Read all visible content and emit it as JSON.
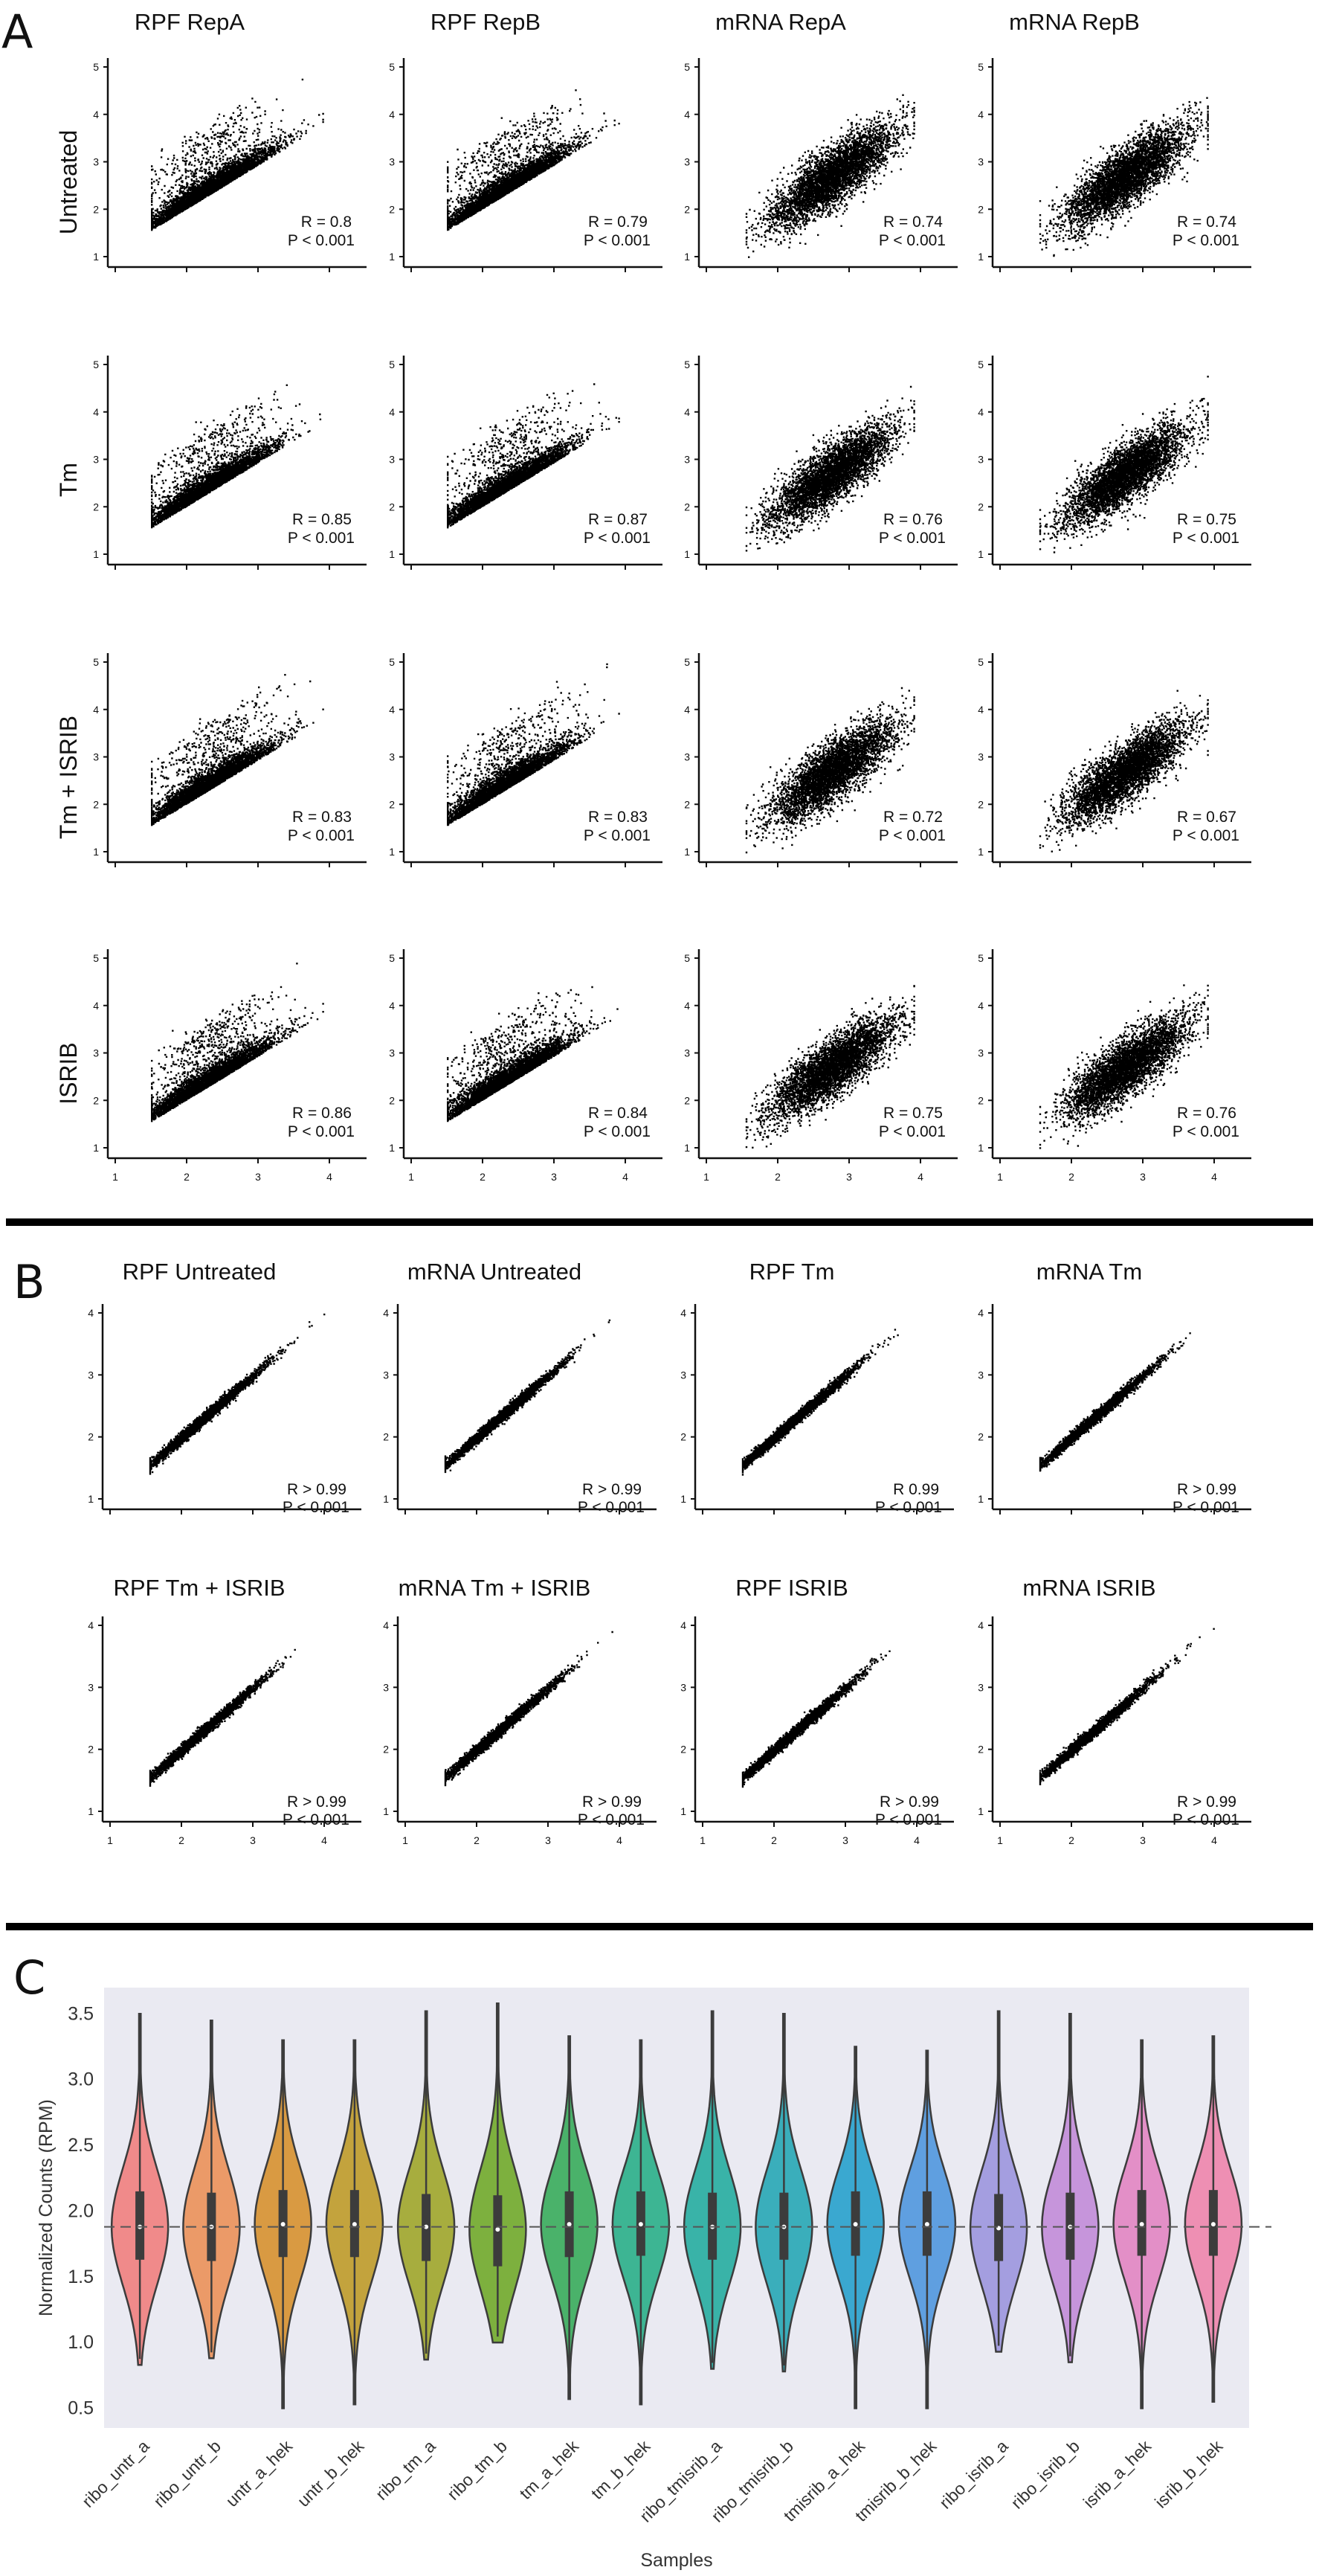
{
  "panels": {
    "A": "A",
    "B": "B",
    "C": "C"
  },
  "chart_data": [
    {
      "type": "scatter",
      "panel": "A",
      "columns": [
        "RPF RepA",
        "RPF RepB",
        "mRNA RepA",
        "mRNA RepB"
      ],
      "rows": [
        "Untreated",
        "Tm",
        "Tm + ISRIB",
        "ISRIB"
      ],
      "xlim": [
        1,
        4
      ],
      "ylim": [
        1,
        5
      ],
      "xticks": [
        1,
        2,
        3,
        4
      ],
      "yticks": [
        1,
        2,
        3,
        4,
        5
      ],
      "stats": [
        [
          {
            "r": "R = 0.8",
            "p": "P < 0.001"
          },
          {
            "r": "R = 0.79",
            "p": "P < 0.001"
          },
          {
            "r": "R = 0.74",
            "p": "P < 0.001"
          },
          {
            "r": "R = 0.74",
            "p": "P < 0.001"
          }
        ],
        [
          {
            "r": "R = 0.85",
            "p": "P < 0.001"
          },
          {
            "r": "R = 0.87",
            "p": "P < 0.001"
          },
          {
            "r": "R = 0.76",
            "p": "P < 0.001"
          },
          {
            "r": "R = 0.75",
            "p": "P < 0.001"
          }
        ],
        [
          {
            "r": "R = 0.83",
            "p": "P < 0.001"
          },
          {
            "r": "R = 0.83",
            "p": "P < 0.001"
          },
          {
            "r": "R = 0.72",
            "p": "P < 0.001"
          },
          {
            "r": "R = 0.67",
            "p": "P < 0.001"
          }
        ],
        [
          {
            "r": "R = 0.86",
            "p": "P < 0.001"
          },
          {
            "r": "R = 0.84",
            "p": "P < 0.001"
          },
          {
            "r": "R = 0.75",
            "p": "P < 0.001"
          },
          {
            "r": "R = 0.76",
            "p": "P < 0.001"
          }
        ]
      ]
    },
    {
      "type": "scatter",
      "panel": "B",
      "xlim": [
        1,
        4
      ],
      "ylim": [
        1,
        4
      ],
      "xticks": [
        1,
        2,
        3,
        4
      ],
      "yticks": [
        1,
        2,
        3,
        4
      ],
      "plots": [
        {
          "title": "RPF Untreated",
          "r": "R > 0.99",
          "p": "P < 0.001"
        },
        {
          "title": "mRNA Untreated",
          "r": "R > 0.99",
          "p": "P < 0.001"
        },
        {
          "title": "RPF Tm",
          "r": "R 0.99",
          "p": "P < 0.001"
        },
        {
          "title": "mRNA Tm",
          "r": "R > 0.99",
          "p": "P < 0.001"
        },
        {
          "title": "RPF Tm + ISRIB",
          "r": "R > 0.99",
          "p": "P < 0.001"
        },
        {
          "title": "mRNA Tm + ISRIB",
          "r": "R > 0.99",
          "p": "P < 0.001"
        },
        {
          "title": "RPF ISRIB",
          "r": "R > 0.99",
          "p": "P < 0.001"
        },
        {
          "title": "mRNA ISRIB",
          "r": "R > 0.99",
          "p": "P < 0.001"
        }
      ]
    },
    {
      "type": "violin",
      "panel": "C",
      "xlabel": "Samples",
      "ylabel": "Normalized Counts (RPM)",
      "ylim": [
        0.35,
        3.7
      ],
      "yticks": [
        "0.5",
        "1.0",
        "1.5",
        "2.0",
        "2.5",
        "3.0",
        "3.5"
      ],
      "reference_line": 1.88,
      "background": "#eaeaf2",
      "samples": [
        {
          "name": "ribo_untr_a",
          "color": "#f08a8a",
          "min": 0.83,
          "q1": 1.63,
          "median": 1.88,
          "q3": 2.15,
          "max": 3.5
        },
        {
          "name": "ribo_untr_b",
          "color": "#eb9a68",
          "min": 0.88,
          "q1": 1.62,
          "median": 1.88,
          "q3": 2.14,
          "max": 3.45
        },
        {
          "name": "untr_a_hek",
          "color": "#d99a42",
          "min": 0.5,
          "q1": 1.65,
          "median": 1.9,
          "q3": 2.16,
          "max": 3.3
        },
        {
          "name": "untr_b_hek",
          "color": "#c3a33d",
          "min": 0.53,
          "q1": 1.65,
          "median": 1.9,
          "q3": 2.16,
          "max": 3.3
        },
        {
          "name": "ribo_tm_a",
          "color": "#a7ad3e",
          "min": 0.87,
          "q1": 1.62,
          "median": 1.88,
          "q3": 2.13,
          "max": 3.52
        },
        {
          "name": "ribo_tm_b",
          "color": "#7db03e",
          "min": 1.0,
          "q1": 1.58,
          "median": 1.86,
          "q3": 2.12,
          "max": 3.58
        },
        {
          "name": "tm_a_hek",
          "color": "#4ab26a",
          "min": 0.57,
          "q1": 1.65,
          "median": 1.9,
          "q3": 2.15,
          "max": 3.33
        },
        {
          "name": "tm_b_hek",
          "color": "#3db593",
          "min": 0.53,
          "q1": 1.66,
          "median": 1.9,
          "q3": 2.15,
          "max": 3.3
        },
        {
          "name": "ribo_tmisrib_a",
          "color": "#39b3a8",
          "min": 0.8,
          "q1": 1.63,
          "median": 1.88,
          "q3": 2.14,
          "max": 3.52
        },
        {
          "name": "ribo_tmisrib_b",
          "color": "#3aaebb",
          "min": 0.78,
          "q1": 1.63,
          "median": 1.88,
          "q3": 2.14,
          "max": 3.5
        },
        {
          "name": "tmisrib_a_hek",
          "color": "#3aa8d0",
          "min": 0.5,
          "q1": 1.66,
          "median": 1.9,
          "q3": 2.15,
          "max": 3.25
        },
        {
          "name": "tmisrib_b_hek",
          "color": "#5f9fe0",
          "min": 0.5,
          "q1": 1.66,
          "median": 1.9,
          "q3": 2.15,
          "max": 3.22
        },
        {
          "name": "ribo_isrib_a",
          "color": "#a49ee0",
          "min": 0.93,
          "q1": 1.62,
          "median": 1.87,
          "q3": 2.13,
          "max": 3.52
        },
        {
          "name": "ribo_isrib_b",
          "color": "#c695db",
          "min": 0.85,
          "q1": 1.63,
          "median": 1.88,
          "q3": 2.14,
          "max": 3.5
        },
        {
          "name": "isrib_a_hek",
          "color": "#e38fc7",
          "min": 0.5,
          "q1": 1.66,
          "median": 1.9,
          "q3": 2.16,
          "max": 3.3
        },
        {
          "name": "isrib_b_hek",
          "color": "#ee8fb3",
          "min": 0.55,
          "q1": 1.66,
          "median": 1.9,
          "q3": 2.16,
          "max": 3.33
        }
      ]
    }
  ]
}
